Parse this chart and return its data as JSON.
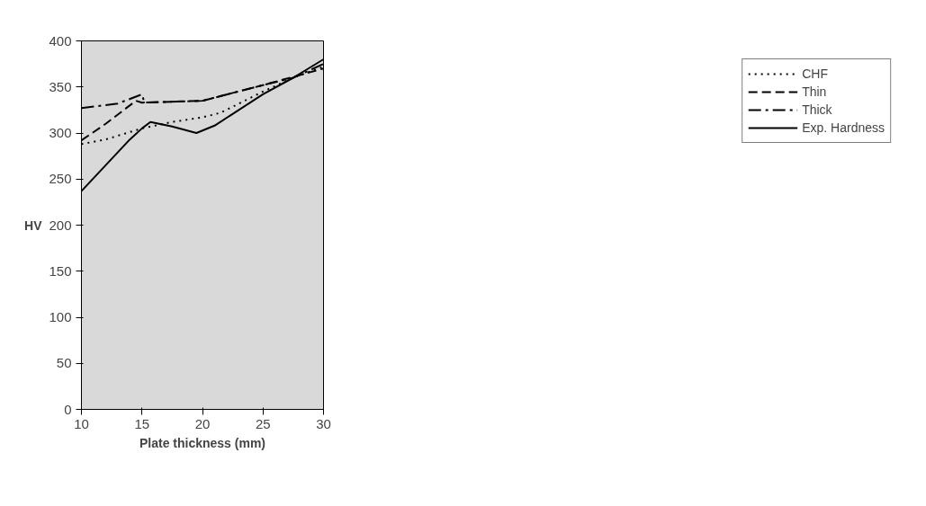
{
  "chart_data": {
    "type": "line",
    "xlabel": "Plate thickness (mm)",
    "ylabel": "HV",
    "xlim": [
      10,
      30
    ],
    "ylim": [
      0,
      400
    ],
    "xticks": [
      10,
      15,
      20,
      25,
      30
    ],
    "yticks": [
      0,
      50,
      100,
      150,
      200,
      250,
      300,
      350,
      400
    ],
    "grid": false,
    "legend": "right",
    "marker": "none",
    "series": [
      {
        "name": "CHF",
        "color": "#000000",
        "line_style": "dotted",
        "x": [
          10,
          12,
          15,
          17.5,
          20,
          21.5,
          25,
          27.5,
          30
        ],
        "values": [
          288,
          293,
          305,
          312,
          317,
          322,
          345,
          360,
          372
        ]
      },
      {
        "name": "Thin",
        "color": "#000000",
        "line_style": "dashed",
        "x": [
          10,
          12,
          14.5,
          15,
          20,
          25,
          30
        ],
        "values": [
          292,
          310,
          335,
          333,
          335,
          352,
          370
        ]
      },
      {
        "name": "Thick",
        "color": "#000000",
        "line_style": "dashdot",
        "x": [
          10,
          13,
          15,
          15.2,
          20,
          25,
          27.5,
          30
        ],
        "values": [
          327,
          332,
          342,
          333,
          335,
          352,
          360,
          375
        ]
      },
      {
        "name": "Exp. Hardness",
        "color": "#000000",
        "line_style": "solid",
        "x": [
          10,
          12,
          14,
          15,
          15.7,
          17.5,
          19.5,
          21,
          23,
          25,
          27.5,
          30
        ],
        "values": [
          237,
          265,
          293,
          305,
          312,
          307,
          300,
          308,
          325,
          342,
          360,
          380
        ]
      }
    ]
  }
}
